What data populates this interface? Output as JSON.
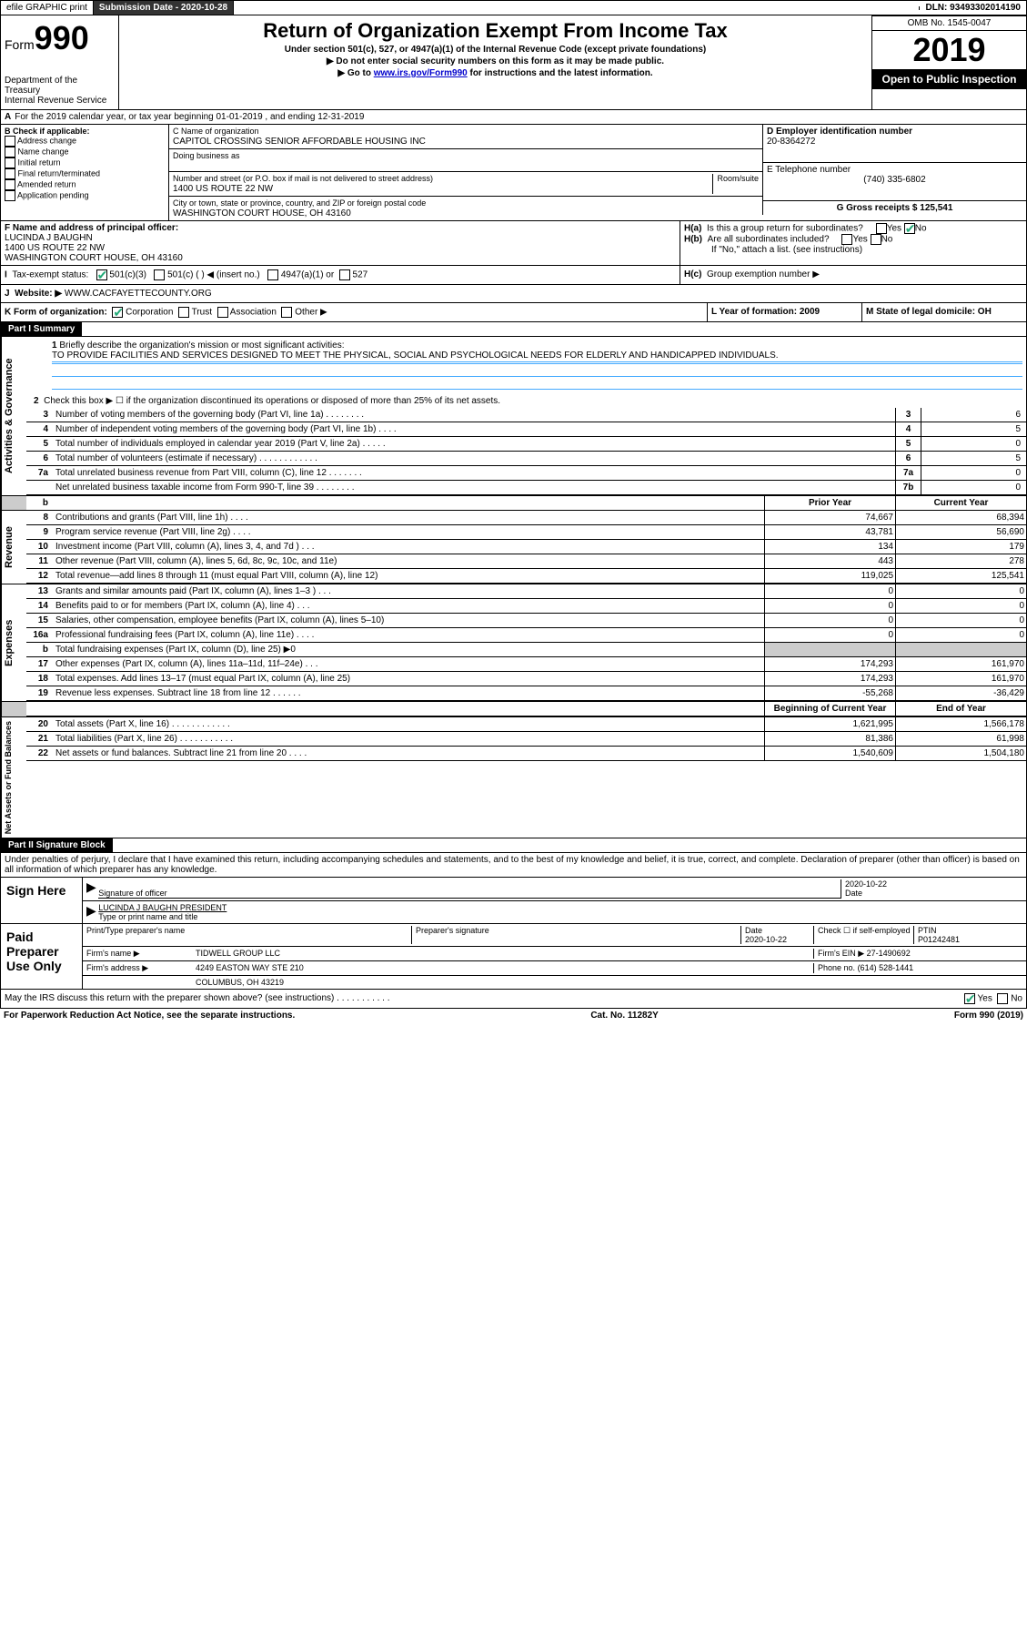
{
  "topbar": {
    "efile": "efile GRAPHIC print",
    "subdate_label": "Submission Date - 2020-10-28",
    "dln": "DLN: 93493302014190"
  },
  "header": {
    "form_prefix": "Form",
    "form_no": "990",
    "dept": "Department of the Treasury",
    "irs": "Internal Revenue Service",
    "title": "Return of Organization Exempt From Income Tax",
    "sub1": "Under section 501(c), 527, or 4947(a)(1) of the Internal Revenue Code (except private foundations)",
    "sub2": "▶ Do not enter social security numbers on this form as it may be made public.",
    "sub3_pre": "▶ Go to ",
    "sub3_link": "www.irs.gov/Form990",
    "sub3_post": " for instructions and the latest information.",
    "omb": "OMB No. 1545-0047",
    "year": "2019",
    "inspect": "Open to Public Inspection"
  },
  "rowA": "For the 2019 calendar year, or tax year beginning 01-01-2019    , and ending 12-31-2019",
  "boxB": {
    "hdr": "B Check if applicable:",
    "opts": [
      "Address change",
      "Name change",
      "Initial return",
      "Final return/terminated",
      "Amended return",
      "Application pending"
    ]
  },
  "boxC": {
    "label": "C Name of organization",
    "name": "CAPITOL CROSSING SENIOR AFFORDABLE HOUSING INC",
    "dba_label": "Doing business as",
    "addr_label": "Number and street (or P.O. box if mail is not delivered to street address)",
    "room": "Room/suite",
    "addr": "1400 US ROUTE 22 NW",
    "city_label": "City or town, state or province, country, and ZIP or foreign postal code",
    "city": "WASHINGTON COURT HOUSE, OH  43160"
  },
  "boxD": {
    "label": "D Employer identification number",
    "val": "20-8364272"
  },
  "boxE": {
    "label": "E Telephone number",
    "val": "(740) 335-6802"
  },
  "boxG": {
    "label": "G Gross receipts $ 125,541"
  },
  "boxF": {
    "label": "F Name and address of principal officer:",
    "name": "LUCINDA J BAUGHN",
    "addr1": "1400 US ROUTE 22 NW",
    "addr2": "WASHINGTON COURT HOUSE, OH  43160"
  },
  "boxH": {
    "a": "Is this a group return for subordinates?",
    "b": "Are all subordinates included?",
    "note": "If \"No,\" attach a list. (see instructions)",
    "c": "Group exemption number ▶"
  },
  "taxexempt": {
    "label": "Tax-exempt status:",
    "o1": "501(c)(3)",
    "o2": "501(c) (  ) ◀ (insert no.)",
    "o3": "4947(a)(1) or",
    "o4": "527"
  },
  "boxJ": {
    "label": "Website: ▶",
    "val": "WWW.CACFAYETTECOUNTY.ORG"
  },
  "boxK": {
    "label": "K Form of organization:",
    "o1": "Corporation",
    "o2": "Trust",
    "o3": "Association",
    "o4": "Other ▶"
  },
  "boxL": {
    "label": "L Year of formation: 2009"
  },
  "boxM": {
    "label": "M State of legal domicile: OH"
  },
  "part1_hdr": "Part I     Summary",
  "summary": {
    "q1_label": "Briefly describe the organization's mission or most significant activities:",
    "q1_text": "TO PROVIDE FACILITIES AND SERVICES DESIGNED TO MEET THE PHYSICAL, SOCIAL AND PSYCHOLOGICAL NEEDS FOR ELDERLY AND HANDICAPPED INDIVIDUALS.",
    "q2": "Check this box ▶ ☐  if the organization discontinued its operations or disposed of more than 25% of its net assets.",
    "rows_ag": [
      {
        "n": "3",
        "t": "Number of voting members of the governing body (Part VI, line 1a)   .   .   .   .   .   .   .   .",
        "box": "3",
        "v": "6"
      },
      {
        "n": "4",
        "t": "Number of independent voting members of the governing body (Part VI, line 1b)   .   .   .   .",
        "box": "4",
        "v": "5"
      },
      {
        "n": "5",
        "t": "Total number of individuals employed in calendar year 2019 (Part V, line 2a)   .   .   .   .   .",
        "box": "5",
        "v": "0"
      },
      {
        "n": "6",
        "t": "Total number of volunteers (estimate if necessary)   .   .   .   .   .   .   .   .   .   .   .   .",
        "box": "6",
        "v": "5"
      },
      {
        "n": "7a",
        "t": "Total unrelated business revenue from Part VIII, column (C), line 12   .   .   .   .   .   .   .",
        "box": "7a",
        "v": "0"
      },
      {
        "n": "",
        "t": "Net unrelated business taxable income from Form 990-T, line 39   .   .   .   .   .   .   .   .",
        "box": "7b",
        "v": "0"
      }
    ],
    "col_hdr": {
      "prior": "Prior Year",
      "curr": "Current Year"
    },
    "rev": [
      {
        "n": "8",
        "t": "Contributions and grants (Part VIII, line 1h)   .   .   .   .",
        "p": "74,667",
        "c": "68,394"
      },
      {
        "n": "9",
        "t": "Program service revenue (Part VIII, line 2g)   .   .   .   .",
        "p": "43,781",
        "c": "56,690"
      },
      {
        "n": "10",
        "t": "Investment income (Part VIII, column (A), lines 3, 4, and 7d )   .   .   .",
        "p": "134",
        "c": "179"
      },
      {
        "n": "11",
        "t": "Other revenue (Part VIII, column (A), lines 5, 6d, 8c, 9c, 10c, and 11e)",
        "p": "443",
        "c": "278"
      },
      {
        "n": "12",
        "t": "Total revenue—add lines 8 through 11 (must equal Part VIII, column (A), line 12)",
        "p": "119,025",
        "c": "125,541"
      }
    ],
    "exp": [
      {
        "n": "13",
        "t": "Grants and similar amounts paid (Part IX, column (A), lines 1–3 )   .   .   .",
        "p": "0",
        "c": "0"
      },
      {
        "n": "14",
        "t": "Benefits paid to or for members (Part IX, column (A), line 4)   .   .   .",
        "p": "0",
        "c": "0"
      },
      {
        "n": "15",
        "t": "Salaries, other compensation, employee benefits (Part IX, column (A), lines 5–10)",
        "p": "0",
        "c": "0"
      },
      {
        "n": "16a",
        "t": "Professional fundraising fees (Part IX, column (A), line 11e)   .   .   .   .",
        "p": "0",
        "c": "0"
      },
      {
        "n": "b",
        "t": "Total fundraising expenses (Part IX, column (D), line 25) ▶0",
        "p": "",
        "c": "",
        "grey": true
      },
      {
        "n": "17",
        "t": "Other expenses (Part IX, column (A), lines 11a–11d, 11f–24e)   .   .   .",
        "p": "174,293",
        "c": "161,970"
      },
      {
        "n": "18",
        "t": "Total expenses. Add lines 13–17 (must equal Part IX, column (A), line 25)",
        "p": "174,293",
        "c": "161,970"
      },
      {
        "n": "19",
        "t": "Revenue less expenses. Subtract line 18 from line 12   .   .   .   .   .   .",
        "p": "-55,268",
        "c": "-36,429"
      }
    ],
    "net_hdr": {
      "b": "Beginning of Current Year",
      "e": "End of Year"
    },
    "net": [
      {
        "n": "20",
        "t": "Total assets (Part X, line 16)   .   .   .   .   .   .   .   .   .   .   .   .",
        "p": "1,621,995",
        "c": "1,566,178"
      },
      {
        "n": "21",
        "t": "Total liabilities (Part X, line 26)   .   .   .   .   .   .   .   .   .   .   .",
        "p": "81,386",
        "c": "61,998"
      },
      {
        "n": "22",
        "t": "Net assets or fund balances. Subtract line 21 from line 20   .   .   .   .",
        "p": "1,540,609",
        "c": "1,504,180"
      }
    ]
  },
  "part2_hdr": "Part II     Signature Block",
  "part2_txt": "Under penalties of perjury, I declare that I have examined this return, including accompanying schedules and statements, and to the best of my knowledge and belief, it is true, correct, and complete. Declaration of preparer (other than officer) is based on all information of which preparer has any knowledge.",
  "sign": {
    "left": "Sign Here",
    "sig_label": "Signature of officer",
    "date": "2020-10-22",
    "date_label": "Date",
    "name": "LUCINDA J BAUGHN  PRESIDENT",
    "name_label": "Type or print name and title"
  },
  "paid": {
    "left": "Paid Preparer Use Only",
    "h1": "Print/Type preparer's name",
    "h2": "Preparer's signature",
    "h3": "Date",
    "h3v": "2020-10-22",
    "h4": "Check ☐ if self-employed",
    "h5": "PTIN",
    "h5v": "P01242481",
    "firm_label": "Firm's name    ▶",
    "firm": "TIDWELL GROUP LLC",
    "ein_label": "Firm's EIN ▶",
    "ein": "27-1490692",
    "addr_label": "Firm's address ▶",
    "addr1": "4249 EASTON WAY STE 210",
    "addr2": "COLUMBUS, OH  43219",
    "phone_label": "Phone no.",
    "phone": "(614) 528-1441",
    "discuss": "May the IRS discuss this return with the preparer shown above? (see instructions)   .   .   .   .   .   .   .   .   .   .   ."
  },
  "footer": {
    "l": "For Paperwork Reduction Act Notice, see the separate instructions.",
    "m": "Cat. No. 11282Y",
    "r": "Form 990 (2019)"
  },
  "labels": {
    "yes": "Yes",
    "no": "No",
    "a_prefix": "A"
  }
}
